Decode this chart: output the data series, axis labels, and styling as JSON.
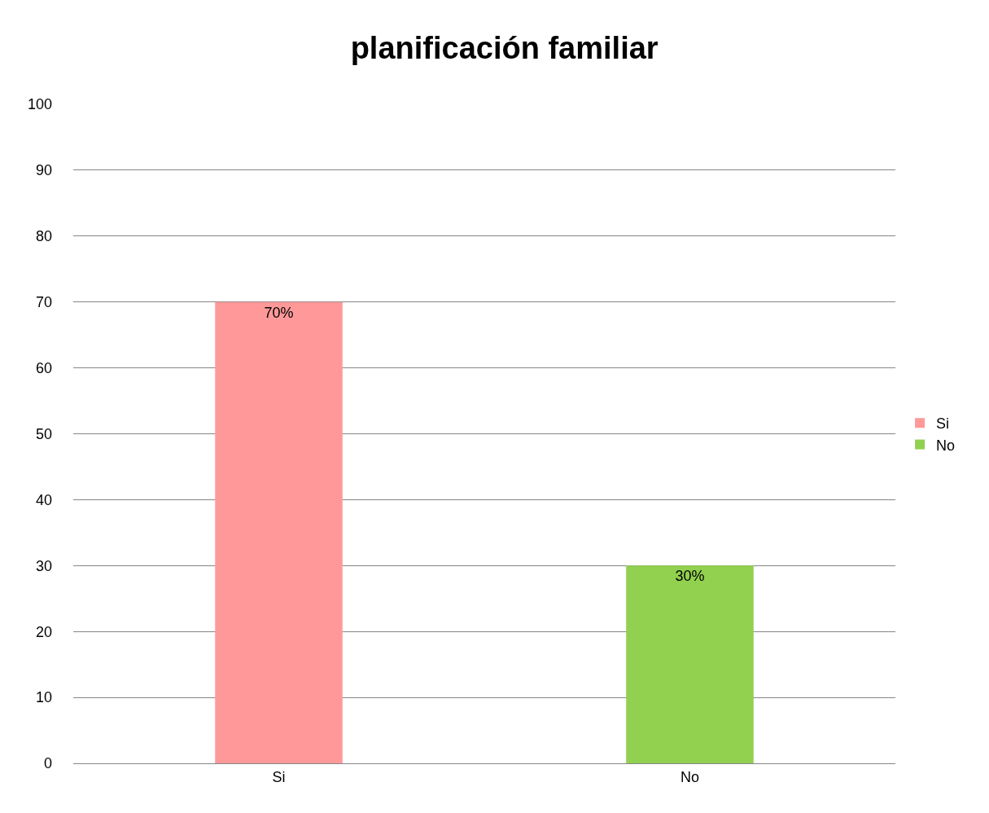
{
  "chart_data": {
    "type": "bar",
    "title": "planificación familiar",
    "categories": [
      "Si",
      "No"
    ],
    "series": [
      {
        "name": "Si",
        "color": "#ff9999",
        "values": [
          70,
          null
        ],
        "value_labels": [
          "70%",
          null
        ]
      },
      {
        "name": "No",
        "color": "#92d050",
        "values": [
          null,
          30
        ],
        "value_labels": [
          null,
          "30%"
        ]
      }
    ],
    "ylim": [
      0,
      100
    ],
    "yticks": [
      0,
      10,
      20,
      30,
      40,
      50,
      60,
      70,
      80,
      90,
      100
    ],
    "grid": "y",
    "legend": "right"
  }
}
